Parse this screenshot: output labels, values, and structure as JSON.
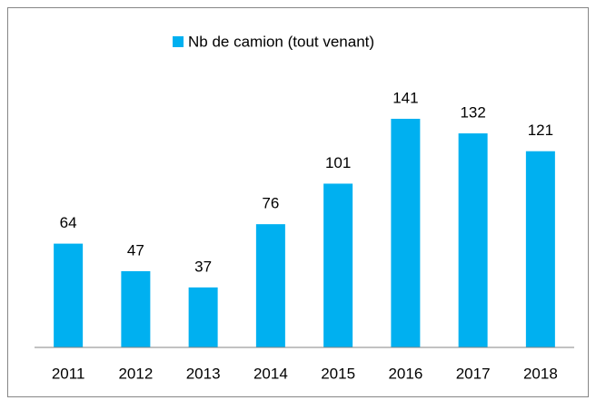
{
  "chart_data": {
    "type": "bar",
    "categories": [
      "2011",
      "2012",
      "2013",
      "2014",
      "2015",
      "2016",
      "2017",
      "2018"
    ],
    "series": [
      {
        "name": "Nb de camion (tout venant)",
        "color": "#00b0f0",
        "values": [
          64,
          47,
          37,
          76,
          101,
          141,
          132,
          121
        ]
      }
    ],
    "ylim": [
      0,
      160
    ],
    "legend": "top"
  }
}
